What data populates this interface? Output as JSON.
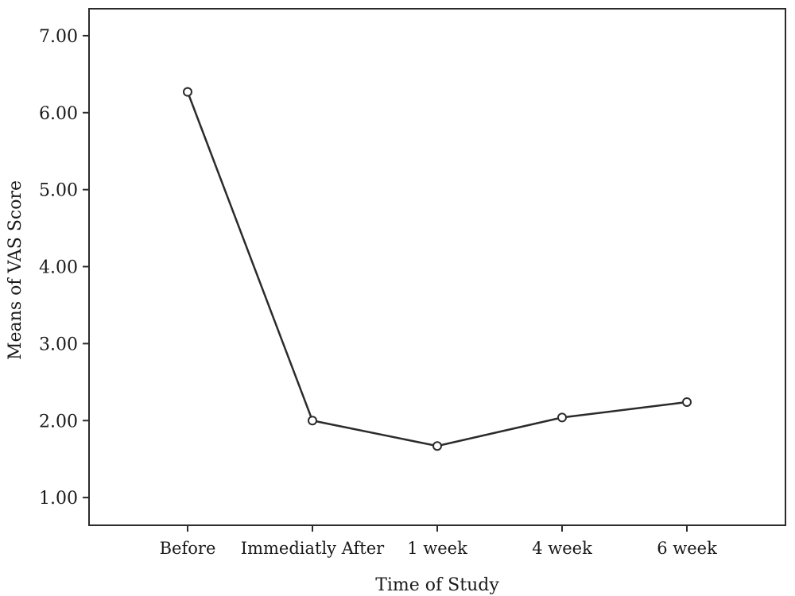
{
  "chart_data": {
    "type": "line",
    "title": "",
    "xlabel": "Time of Study",
    "ylabel": "Means of VAS Score",
    "categories": [
      "Before",
      "Immediatly After",
      "1 week",
      "4 week",
      "6 week"
    ],
    "series": [
      {
        "values": [
          6.27,
          2.0,
          1.67,
          2.04,
          2.24
        ]
      }
    ],
    "ylim": [
      0.64,
      7.35
    ],
    "yticks": [
      1.0,
      2.0,
      3.0,
      4.0,
      5.0,
      6.0,
      7.0
    ],
    "ytick_labels": [
      "1.00",
      "2.00",
      "3.00",
      "4.00",
      "5.00",
      "6.00",
      "7.00"
    ],
    "grid": false,
    "legend": "none",
    "colors": {
      "line": "#2b2b2b",
      "marker_fill": "#ffffff"
    }
  }
}
